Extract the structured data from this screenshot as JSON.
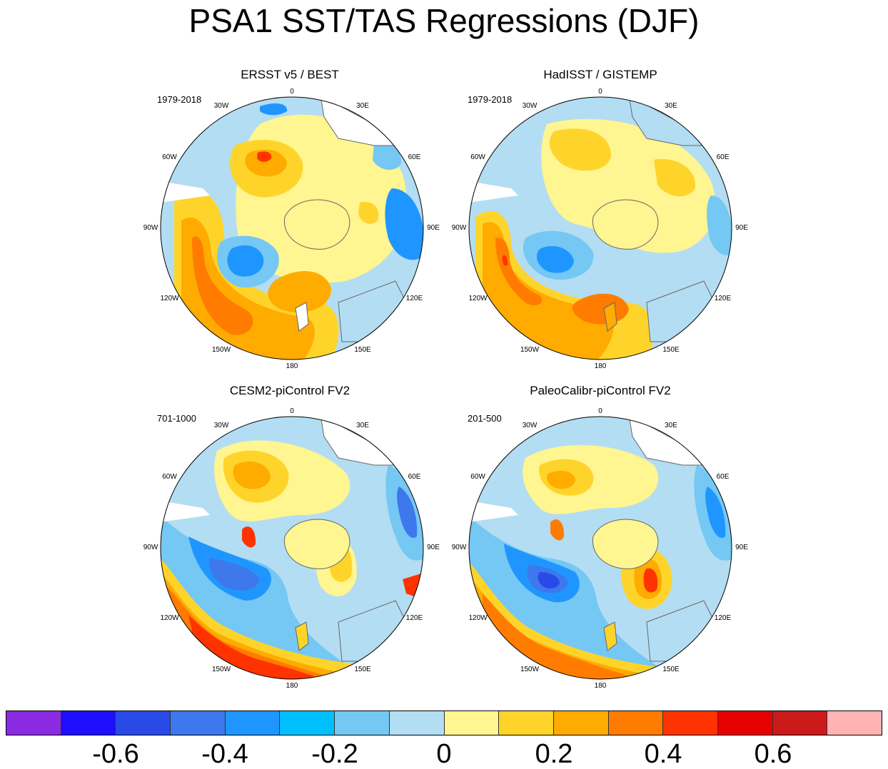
{
  "title": "PSA1 SST/TAS Regressions (DJF)",
  "panels": [
    {
      "title": "ERSST v5 / BEST",
      "period": "1979-2018"
    },
    {
      "title": "HadISST / GISTEMP",
      "period": "1979-2018"
    },
    {
      "title": "CESM2-piControl FV2",
      "period": "701-1000"
    },
    {
      "title": "PaleoCalibr-piControl FV2",
      "period": "201-500"
    }
  ],
  "longitude_labels": [
    "0",
    "30E",
    "60E",
    "90E",
    "120E",
    "150E",
    "180",
    "150W",
    "120W",
    "90W",
    "60W",
    "30W"
  ],
  "colorbar": {
    "colors": [
      "#8a2be2",
      "#1e0fff",
      "#2a4ae8",
      "#3d78ec",
      "#1f96ff",
      "#00bfff",
      "#74c8f3",
      "#b3ddf2",
      "#fff591",
      "#ffd42a",
      "#ffab00",
      "#ff7c00",
      "#ff3300",
      "#e60000",
      "#cc1a1a",
      "#ffb3b3"
    ],
    "labels": [
      "-0.6",
      "-0.4",
      "-0.2",
      "0",
      "0.2",
      "0.4",
      "0.6"
    ]
  }
}
